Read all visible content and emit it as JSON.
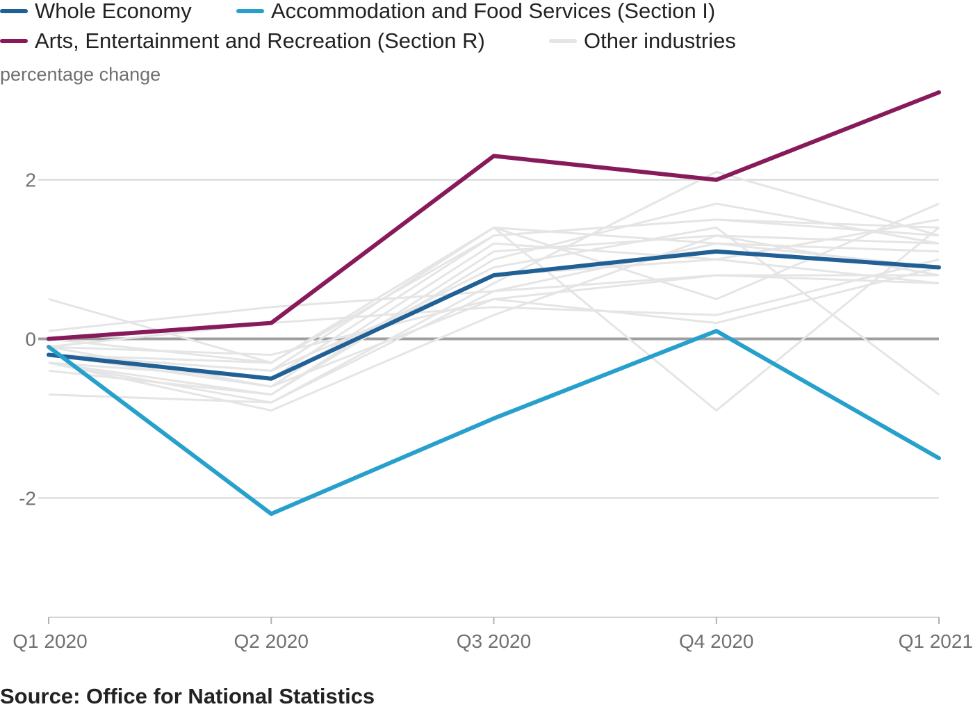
{
  "chart_data": {
    "type": "line",
    "ylabel": "percentage change",
    "x": [
      "Q1 2020",
      "Q2 2020",
      "Q3 2020",
      "Q4 2020",
      "Q1 2021"
    ],
    "ylim": [
      -3.5,
      3.3
    ],
    "yticks": [
      -2,
      0,
      2
    ],
    "grid": true,
    "legend_position": "top",
    "highlight_series": [
      {
        "name": "Other industries",
        "color": "#e5e5e5",
        "role": "background"
      },
      {
        "name": "Arts, Entertainment and Recreation (Section R)",
        "color": "#871a5b",
        "values": [
          0.0,
          0.2,
          2.3,
          2.0,
          3.1
        ]
      },
      {
        "name": "Whole Economy",
        "color": "#206095",
        "values": [
          -0.2,
          -0.5,
          0.8,
          1.1,
          0.9
        ]
      },
      {
        "name": "Accommodation and Food Services (Section I)",
        "color": "#27a0cc",
        "values": [
          -0.1,
          -2.2,
          -1.0,
          0.1,
          -1.5
        ]
      }
    ],
    "other_industries": [
      [
        0.5,
        -0.3,
        1.4,
        1.2,
        0.9
      ],
      [
        0.1,
        0.4,
        0.6,
        0.8,
        0.7
      ],
      [
        -0.1,
        0.2,
        0.4,
        0.3,
        1.0
      ],
      [
        -0.3,
        -0.5,
        1.3,
        1.5,
        1.3
      ],
      [
        -0.2,
        -0.6,
        1.2,
        1.0,
        1.5
      ],
      [
        -0.4,
        -0.7,
        1.0,
        1.7,
        1.2
      ],
      [
        -0.7,
        -0.8,
        0.7,
        2.1,
        1.3
      ],
      [
        -0.2,
        -0.4,
        1.4,
        0.5,
        1.7
      ],
      [
        -0.3,
        -0.9,
        0.3,
        1.3,
        0.8
      ],
      [
        -0.1,
        -0.2,
        0.5,
        0.2,
        0.9
      ],
      [
        0.0,
        -0.3,
        1.4,
        -0.9,
        1.4
      ],
      [
        -0.2,
        -0.5,
        0.9,
        1.4,
        -0.7
      ],
      [
        -0.3,
        -0.8,
        0.6,
        1.2,
        1.1
      ],
      [
        -0.1,
        -0.6,
        0.5,
        0.8,
        0.8
      ],
      [
        -0.2,
        -0.4,
        0.8,
        1.0,
        0.7
      ],
      [
        -0.3,
        -0.7,
        1.1,
        1.3,
        1.2
      ],
      [
        -0.2,
        -0.3,
        1.3,
        1.5,
        1.4
      ]
    ]
  },
  "legend": [
    {
      "label": "Whole Economy",
      "color": "#206095"
    },
    {
      "label": "Accommodation and Food Services (Section I)",
      "color": "#27a0cc"
    },
    {
      "label": "Arts, Entertainment and Recreation (Section R)",
      "color": "#871a5b"
    },
    {
      "label": "Other industries",
      "color": "#e5e5e5"
    }
  ],
  "source": "Source: Office for National Statistics"
}
